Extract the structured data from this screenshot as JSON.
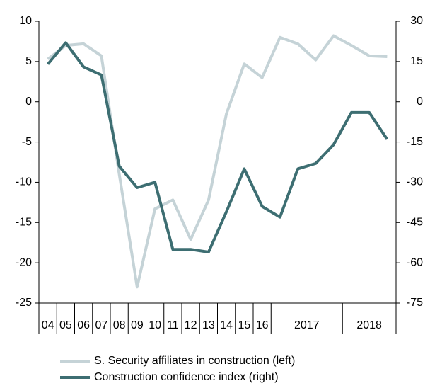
{
  "chart_data": {
    "type": "line",
    "categories": [
      "04",
      "05",
      "06",
      "07",
      "08",
      "09",
      "10",
      "11",
      "12",
      "13",
      "14",
      "15",
      "16",
      "2017",
      null,
      null,
      null,
      "2018",
      null,
      null
    ],
    "series": [
      {
        "name": "S. Security affiliates in construction (left)",
        "color": "#c5d3d7",
        "axis": "y",
        "values": [
          5.3,
          7.0,
          7.2,
          5.7,
          -9,
          -23,
          -13.3,
          -12.2,
          -17.1,
          -12.2,
          -1.5,
          4.7,
          3.0,
          8.0,
          7.2,
          5.2,
          8.2,
          7.0,
          5.7,
          5.6
        ]
      },
      {
        "name": "Construction confidence index (right)",
        "color": "#3d6e72",
        "axis": "y2",
        "values": [
          14,
          22,
          13,
          10,
          -24,
          -32,
          -30,
          -55,
          -55,
          -56,
          -41,
          -25,
          -39,
          -43,
          -25,
          -23,
          -16,
          -4,
          -4,
          -14
        ]
      }
    ],
    "ylim": [
      -25,
      10
    ],
    "yticks": [
      10,
      5,
      0,
      -5,
      -10,
      -15,
      -20,
      -25
    ],
    "y2lim": [
      -75,
      30
    ],
    "y2ticks": [
      30,
      15,
      0,
      -15,
      -30,
      -45,
      -60,
      -75
    ],
    "grid": false
  }
}
